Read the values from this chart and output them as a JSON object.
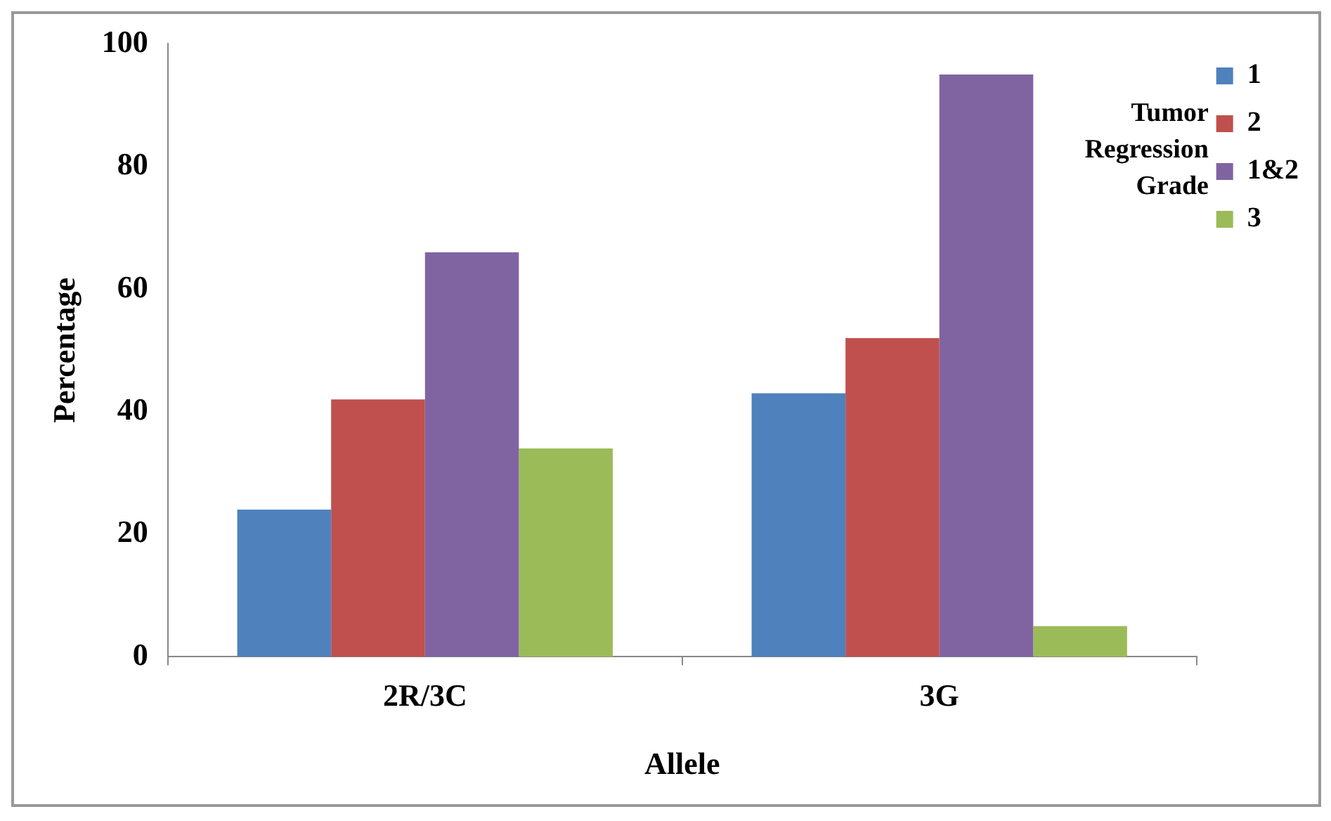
{
  "chart_data": {
    "type": "bar",
    "xlabel": "Allele",
    "ylabel": "Percentage",
    "legend_title": "Tumor Regression Grade",
    "categories": [
      "2R/3C",
      "3G"
    ],
    "series": [
      {
        "name": "1",
        "color": "#4f81bd",
        "values": [
          24,
          43
        ]
      },
      {
        "name": "2",
        "color": "#c0504d",
        "values": [
          42,
          52
        ]
      },
      {
        "name": "1&2",
        "color": "#8064a2",
        "values": [
          66,
          95
        ]
      },
      {
        "name": "3",
        "color": "#9bbb59",
        "values": [
          34,
          5
        ]
      }
    ],
    "ylim": [
      0,
      100
    ],
    "yticks": [
      0,
      20,
      40,
      60,
      80,
      100
    ],
    "grid": false,
    "legend": "top right"
  }
}
